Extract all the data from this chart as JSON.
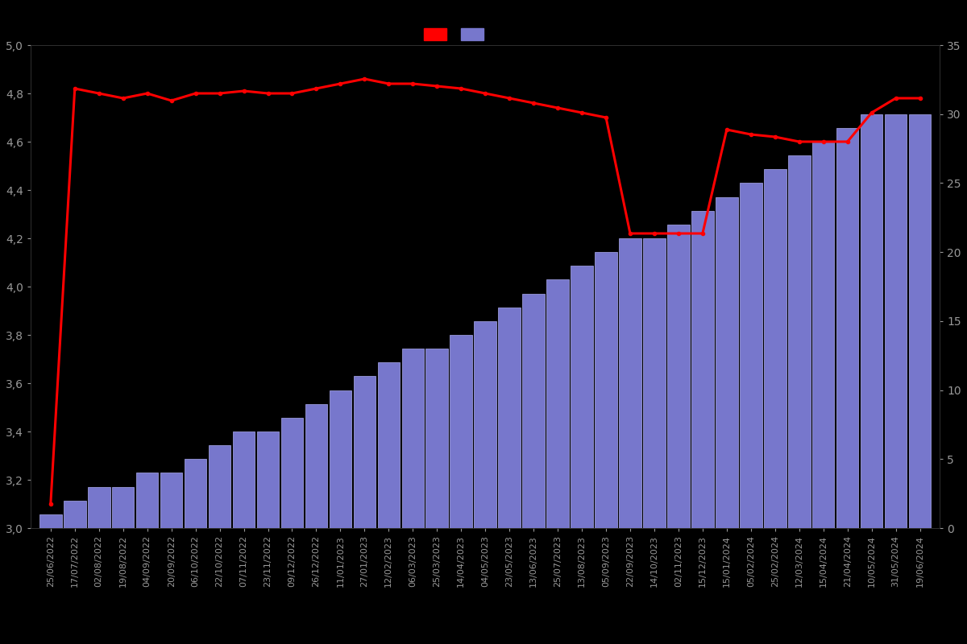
{
  "dates": [
    "25/06/2022",
    "17/07/2022",
    "02/08/2022",
    "19/08/2022",
    "04/09/2022",
    "20/09/2022",
    "06/10/2022",
    "22/10/2022",
    "07/11/2022",
    "23/11/2022",
    "09/12/2022",
    "26/12/2022",
    "11/01/2023",
    "27/01/2023",
    "12/02/2023",
    "06/03/2023",
    "25/03/2023",
    "14/04/2023",
    "04/05/2023",
    "23/05/2023",
    "13/06/2023",
    "25/07/2023",
    "13/08/2023",
    "05/09/2023",
    "22/09/2023",
    "14/10/2023",
    "02/11/2023",
    "15/12/2023",
    "15/01/2024",
    "05/02/2024",
    "25/02/2024",
    "12/03/2024",
    "15/04/2024",
    "21/04/2024",
    "10/05/2024",
    "31/05/2024",
    "19/06/2024"
  ],
  "ratings": [
    3.1,
    4.82,
    4.8,
    4.78,
    4.8,
    4.77,
    4.8,
    4.8,
    4.81,
    4.8,
    4.8,
    4.82,
    4.84,
    4.86,
    4.84,
    4.84,
    4.83,
    4.82,
    4.8,
    4.78,
    4.76,
    4.74,
    4.72,
    4.7,
    4.22,
    4.22,
    4.22,
    4.22,
    4.65,
    4.63,
    4.62,
    4.6,
    4.6,
    4.6,
    4.72,
    4.78,
    4.78
  ],
  "cum_reviews": [
    1,
    2,
    3,
    3,
    4,
    4,
    5,
    6,
    7,
    7,
    8,
    9,
    10,
    11,
    12,
    13,
    13,
    14,
    15,
    16,
    17,
    18,
    19,
    20,
    21,
    21,
    22,
    23,
    24,
    25,
    26,
    27,
    28,
    29,
    30,
    30,
    30
  ],
  "bar_color": "#7777cc",
  "bar_edge_color": "#aaaaee",
  "line_color": "#ff0000",
  "bg_color": "#000000",
  "text_color": "#999999",
  "ylim_left": [
    3.0,
    5.0
  ],
  "ylim_right": [
    0,
    35
  ],
  "yticks_left": [
    3.0,
    3.2,
    3.4,
    3.6,
    3.8,
    4.0,
    4.2,
    4.4,
    4.6,
    4.8,
    5.0
  ],
  "yticks_right": [
    0,
    5,
    10,
    15,
    20,
    25,
    30,
    35
  ]
}
